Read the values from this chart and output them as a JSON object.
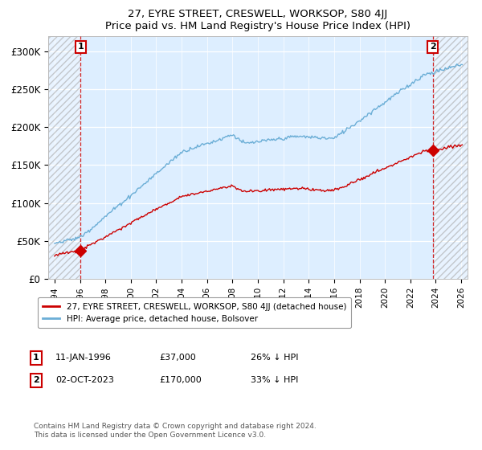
{
  "title": "27, EYRE STREET, CRESWELL, WORKSOP, S80 4JJ",
  "subtitle": "Price paid vs. HM Land Registry's House Price Index (HPI)",
  "ylim": [
    0,
    320000
  ],
  "yticks": [
    0,
    50000,
    100000,
    150000,
    200000,
    250000,
    300000
  ],
  "ytick_labels": [
    "£0",
    "£50K",
    "£100K",
    "£150K",
    "£200K",
    "£250K",
    "£300K"
  ],
  "hpi_color": "#6baed6",
  "price_color": "#cc0000",
  "point1_date": 1996.04,
  "point1_price": 37000,
  "point2_date": 2023.75,
  "point2_price": 170000,
  "legend_label_price": "27, EYRE STREET, CRESWELL, WORKSOP, S80 4JJ (detached house)",
  "legend_label_hpi": "HPI: Average price, detached house, Bolsover",
  "footer": "Contains HM Land Registry data © Crown copyright and database right 2024.\nThis data is licensed under the Open Government Licence v3.0.",
  "xmin": 1993.5,
  "xmax": 2026.5,
  "bg_color": "#ddeeff",
  "hatch_color": "#b0c8e0"
}
